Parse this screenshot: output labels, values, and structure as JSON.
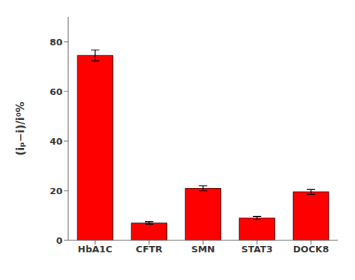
{
  "chart_data": {
    "type": "bar",
    "categories": [
      "HbA1C",
      "CFTR",
      "SMN",
      "STAT3",
      "DOCK8"
    ],
    "values": [
      74.5,
      7.0,
      21.0,
      9.0,
      19.5
    ],
    "errors": [
      2.2,
      0.5,
      1.0,
      0.6,
      1.0
    ],
    "color": "#FF0000",
    "ylabel": "(iₚ−i)/i⁰%",
    "ylim": [
      0,
      90
    ],
    "yticks": [
      0,
      20,
      40,
      60,
      80
    ],
    "grid": false
  }
}
